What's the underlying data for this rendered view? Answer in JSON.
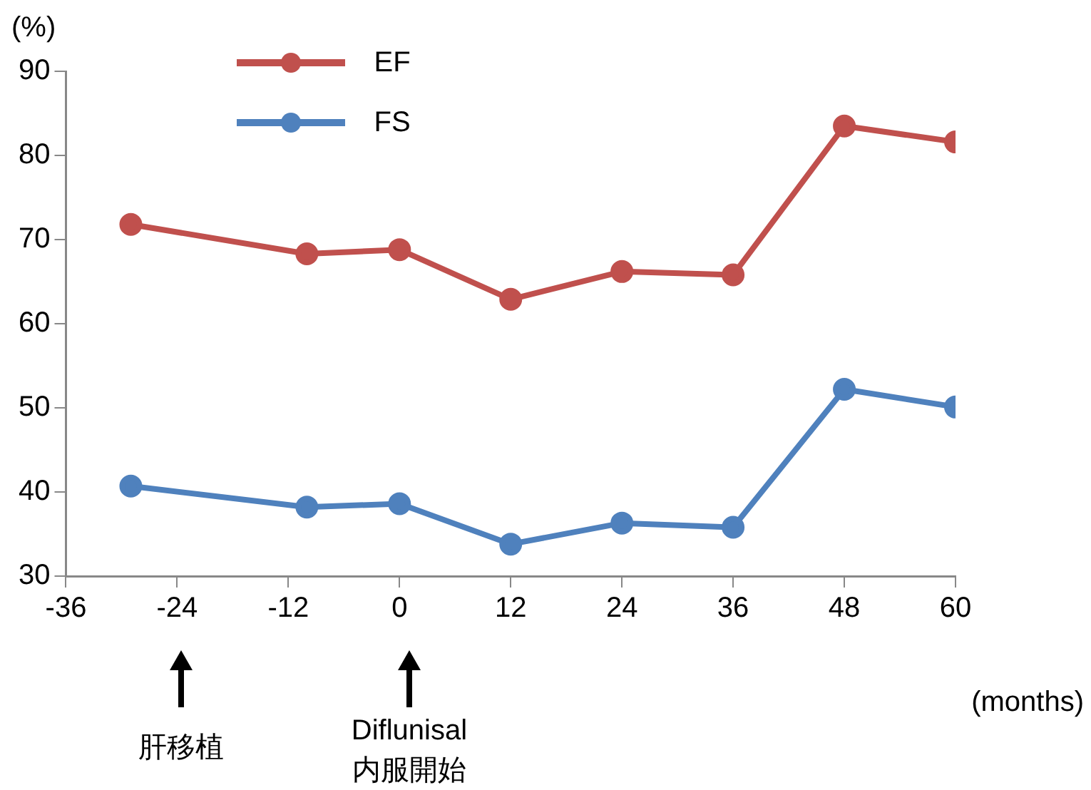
{
  "chart_data": {
    "type": "line",
    "ylabel": "(%)",
    "xlabel": "(months)",
    "x": [
      -29,
      -10,
      0,
      12,
      24,
      36,
      48,
      60
    ],
    "series": [
      {
        "name": "EF",
        "color": "#c0504d",
        "values": [
          71.8,
          68.3,
          68.8,
          62.9,
          66.2,
          65.8,
          83.5,
          81.6
        ]
      },
      {
        "name": "FS",
        "color": "#4f81bd",
        "values": [
          40.7,
          38.2,
          38.6,
          33.8,
          36.3,
          35.8,
          52.2,
          50.1
        ]
      }
    ],
    "xlim": [
      -36,
      60
    ],
    "xticks": [
      -36,
      -24,
      -12,
      0,
      12,
      24,
      36,
      48,
      60
    ],
    "ylim": [
      30,
      90
    ],
    "yticks": [
      30,
      40,
      50,
      60,
      70,
      80,
      90
    ],
    "grid": false,
    "legend": "top left",
    "marker": "circle",
    "line_style": "solid",
    "annotations": [
      "肝移植",
      "Diflunisal\n内服開始"
    ]
  }
}
